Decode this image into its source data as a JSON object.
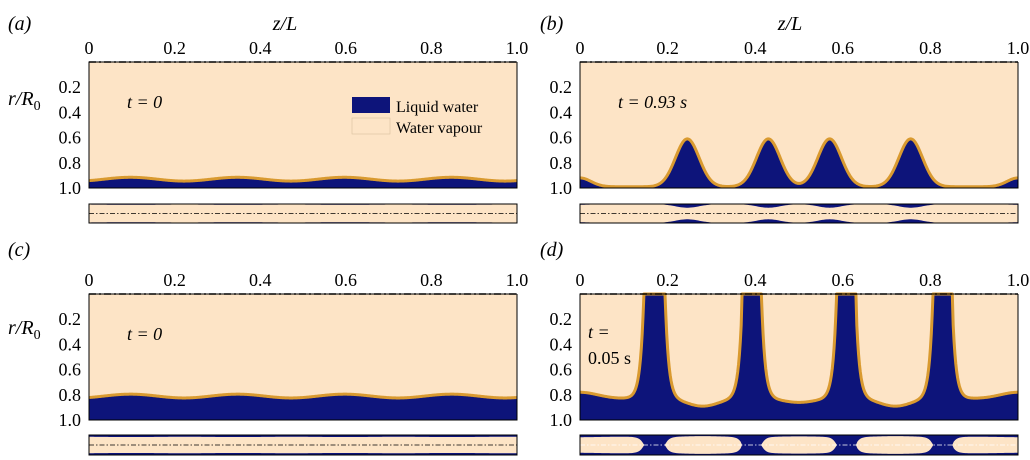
{
  "colors": {
    "liquid": "#0d147a",
    "vapour": "#fde4c6",
    "interface": "#d99a30",
    "frame": "#000000"
  },
  "axes": {
    "x_label": "z/L",
    "y_label": "r/R",
    "y_label_sub": "0",
    "x_ticks": [
      "0",
      "0.2",
      "0.4",
      "0.6",
      "0.8",
      "1.0"
    ],
    "y_ticks": [
      "0.2",
      "0.4",
      "0.6",
      "0.8",
      "1.0"
    ]
  },
  "legend": {
    "items": [
      {
        "label": "Liquid water",
        "color_key": "liquid"
      },
      {
        "label": "Water vapour",
        "color_key": "vapour"
      }
    ]
  },
  "panels": [
    {
      "id": "a",
      "label": "(a)",
      "time_lines": [
        "t = 0"
      ],
      "show_xlabel": true,
      "show_ylabel": true,
      "show_legend": true
    },
    {
      "id": "b",
      "label": "(b)",
      "time_lines": [
        "t = 0.93 s"
      ],
      "show_xlabel": true,
      "show_ylabel": false,
      "show_legend": false
    },
    {
      "id": "c",
      "label": "(c)",
      "time_lines": [
        "t = 0"
      ],
      "show_xlabel": false,
      "show_ylabel": true,
      "show_legend": false
    },
    {
      "id": "d",
      "label": "(d)",
      "time_lines": [
        "t =",
        "0.05 s"
      ],
      "show_xlabel": false,
      "show_ylabel": false,
      "show_legend": false
    }
  ],
  "chart_data": [
    {
      "type": "area",
      "panel": "a",
      "xlim": [
        0,
        1
      ],
      "ylim": [
        0,
        1
      ],
      "y_inverted": true,
      "profile": "film",
      "film_mean_r": 0.93,
      "film_amplitude": 0.015,
      "wavenumber": 4
    },
    {
      "type": "area",
      "panel": "b",
      "xlim": [
        0,
        1
      ],
      "ylim": [
        0,
        1
      ],
      "y_inverted": true,
      "profile": "peaks",
      "base_r": 0.99,
      "peaks": [
        {
          "z": 0.0,
          "r": 0.92,
          "width": 0.025
        },
        {
          "z": 0.245,
          "r": 0.61,
          "width": 0.027
        },
        {
          "z": 0.43,
          "r": 0.61,
          "width": 0.027
        },
        {
          "z": 0.57,
          "r": 0.61,
          "width": 0.027
        },
        {
          "z": 0.755,
          "r": 0.61,
          "width": 0.027
        },
        {
          "z": 1.0,
          "r": 0.92,
          "width": 0.025
        }
      ]
    },
    {
      "type": "area",
      "panel": "c",
      "xlim": [
        0,
        1
      ],
      "ylim": [
        0,
        1
      ],
      "y_inverted": true,
      "profile": "film",
      "film_mean_r": 0.81,
      "film_amplitude": 0.015,
      "wavenumber": 4
    },
    {
      "type": "area",
      "panel": "d",
      "xlim": [
        0,
        1
      ],
      "ylim": [
        0,
        1
      ],
      "y_inverted": true,
      "profile": "columns",
      "base_r": 0.83,
      "columns": [
        {
          "z0": 0.145,
          "z1": 0.195
        },
        {
          "z0": 0.37,
          "z1": 0.415
        },
        {
          "z0": 0.585,
          "z1": 0.63
        },
        {
          "z0": 0.805,
          "z1": 0.85
        }
      ],
      "bumps": [
        {
          "z": 0.0,
          "r": 0.78,
          "width": 0.04
        },
        {
          "z": 0.28,
          "r": 0.89,
          "width": 0.035
        },
        {
          "z": 0.5,
          "r": 0.86,
          "width": 0.035
        },
        {
          "z": 0.72,
          "r": 0.89,
          "width": 0.035
        },
        {
          "z": 1.0,
          "r": 0.78,
          "width": 0.04
        }
      ]
    }
  ]
}
